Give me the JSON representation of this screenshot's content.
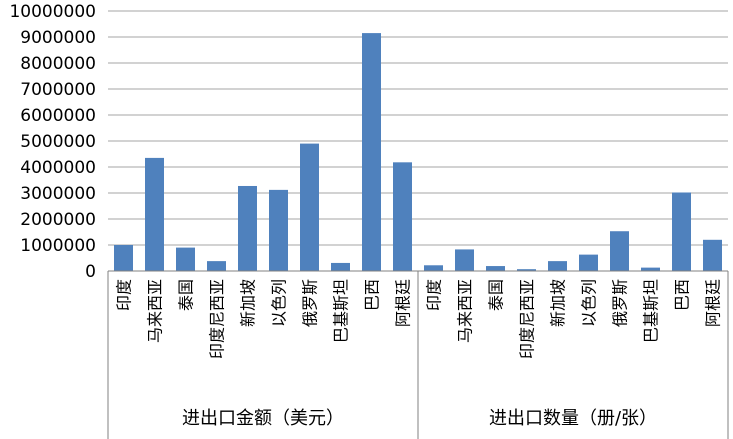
{
  "chart_data": {
    "type": "bar",
    "groups": [
      {
        "label": "进出口金额（美元）",
        "categories": [
          "印度",
          "马来西亚",
          "泰国",
          "印度尼西亚",
          "新加坡",
          "以色列",
          "俄罗斯",
          "巴基斯坦",
          "巴西",
          "阿根廷"
        ],
        "values": [
          1000000,
          4350000,
          900000,
          380000,
          3270000,
          3120000,
          4900000,
          310000,
          9150000,
          4180000
        ]
      },
      {
        "label": "进出口数量（册/张）",
        "categories": [
          "印度",
          "马来西亚",
          "泰国",
          "印度尼西亚",
          "新加坡",
          "以色列",
          "俄罗斯",
          "巴基斯坦",
          "巴西",
          "阿根廷"
        ],
        "values": [
          220000,
          830000,
          190000,
          70000,
          380000,
          630000,
          1530000,
          130000,
          3020000,
          1200000
        ]
      }
    ],
    "y_ticks": [
      "0",
      "1000000",
      "2000000",
      "3000000",
      "4000000",
      "5000000",
      "6000000",
      "7000000",
      "8000000",
      "9000000",
      "10000000"
    ],
    "ylim": [
      0,
      10000000
    ],
    "grid": true,
    "colors": {
      "bar": "#4F81BD",
      "grid": "#A6A6A6",
      "axis": "#808080"
    }
  }
}
